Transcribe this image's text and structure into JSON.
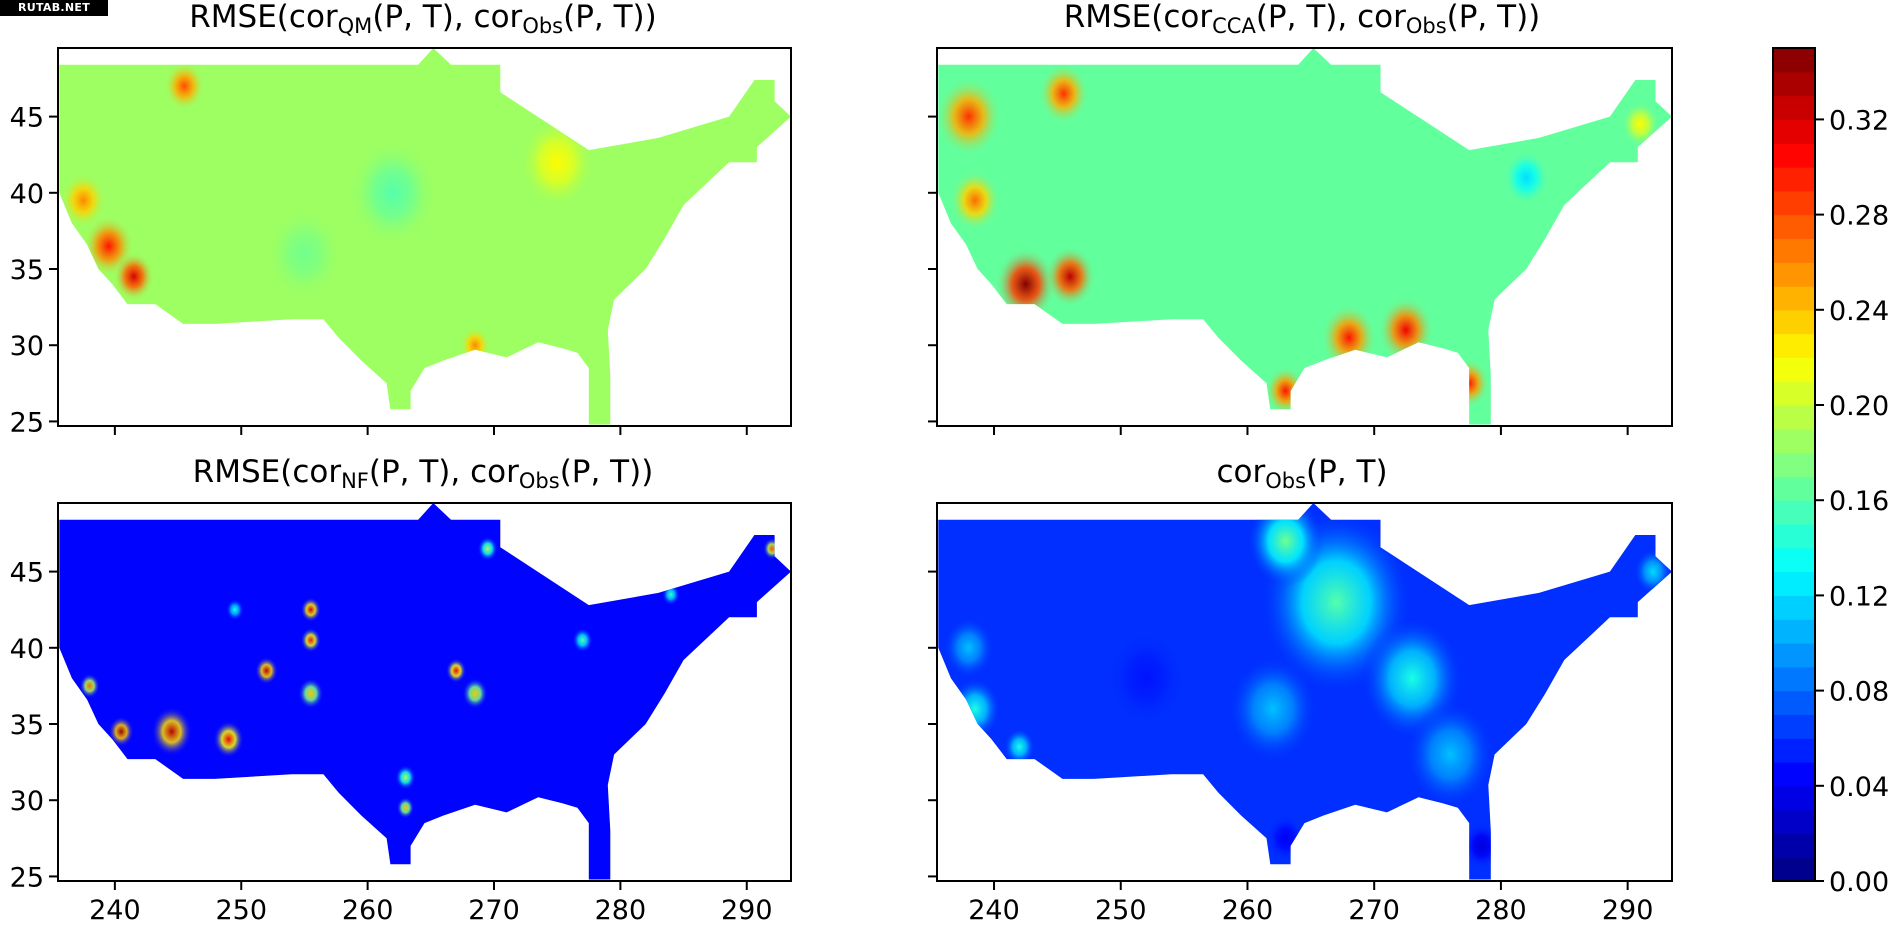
{
  "watermark": "RUTAB.NET",
  "chart_data": {
    "type": "heatmap",
    "colormap": "jet",
    "colorbar": {
      "range": [
        0.0,
        0.35
      ],
      "ticks": [
        "0.00",
        "0.04",
        "0.08",
        "0.12",
        "0.16",
        "0.20",
        "0.24",
        "0.28",
        "0.32"
      ]
    },
    "x_ticks": [
      "240",
      "250",
      "260",
      "270",
      "280",
      "290"
    ],
    "y_ticks": [
      "25",
      "30",
      "35",
      "40",
      "45"
    ],
    "xlim": [
      235.5,
      293.5
    ],
    "ylim": [
      24.7,
      49.5
    ],
    "panels": [
      {
        "title": {
          "pre": "RMSE(cor",
          "sub1": "QM",
          "mid": "(P, T), cor",
          "sub2": "Obs",
          "post": "(P, T))"
        },
        "base_value": 0.185,
        "hotspots": [
          {
            "x": 245.5,
            "y": 47.0,
            "v": 0.28,
            "r": 1.6
          },
          {
            "x": 239.5,
            "y": 36.5,
            "v": 0.3,
            "r": 2.0
          },
          {
            "x": 241.5,
            "y": 34.5,
            "v": 0.32,
            "r": 1.6
          },
          {
            "x": 237.5,
            "y": 39.5,
            "v": 0.26,
            "r": 1.8
          },
          {
            "x": 255.0,
            "y": 36.0,
            "v": 0.17,
            "r": 3.0
          },
          {
            "x": 262.0,
            "y": 40.0,
            "v": 0.16,
            "r": 3.5
          },
          {
            "x": 275.0,
            "y": 42.0,
            "v": 0.22,
            "r": 3.0
          },
          {
            "x": 268.5,
            "y": 30.0,
            "v": 0.26,
            "r": 1.2
          }
        ]
      },
      {
        "title": {
          "pre": "RMSE(cor",
          "sub1": "CCA",
          "mid": "(P, T), cor",
          "sub2": "Obs",
          "post": "(P, T))"
        },
        "base_value": 0.165,
        "hotspots": [
          {
            "x": 238.0,
            "y": 45.0,
            "v": 0.29,
            "r": 2.6
          },
          {
            "x": 242.5,
            "y": 34.0,
            "v": 0.35,
            "r": 2.4
          },
          {
            "x": 246.0,
            "y": 34.5,
            "v": 0.33,
            "r": 2.0
          },
          {
            "x": 245.5,
            "y": 46.5,
            "v": 0.29,
            "r": 2.0
          },
          {
            "x": 238.5,
            "y": 39.5,
            "v": 0.27,
            "r": 2.0
          },
          {
            "x": 268.0,
            "y": 30.5,
            "v": 0.3,
            "r": 2.2
          },
          {
            "x": 272.5,
            "y": 31.0,
            "v": 0.31,
            "r": 2.2
          },
          {
            "x": 263.0,
            "y": 27.0,
            "v": 0.3,
            "r": 1.6
          },
          {
            "x": 277.5,
            "y": 27.5,
            "v": 0.3,
            "r": 1.6
          },
          {
            "x": 291.0,
            "y": 44.5,
            "v": 0.22,
            "r": 1.5
          },
          {
            "x": 282.0,
            "y": 41.0,
            "v": 0.12,
            "r": 1.8
          }
        ]
      },
      {
        "title": {
          "pre": "RMSE(cor",
          "sub1": "NF",
          "mid": "(P, T), cor",
          "sub2": "Obs",
          "post": "(P, T))"
        },
        "base_value": 0.045,
        "hotspots": [
          {
            "x": 252.0,
            "y": 38.5,
            "v": 0.33,
            "r": 0.9
          },
          {
            "x": 255.5,
            "y": 42.5,
            "v": 0.32,
            "r": 0.8
          },
          {
            "x": 255.5,
            "y": 40.5,
            "v": 0.3,
            "r": 0.8
          },
          {
            "x": 255.5,
            "y": 37.0,
            "v": 0.24,
            "r": 1.0
          },
          {
            "x": 240.5,
            "y": 34.5,
            "v": 0.34,
            "r": 1.0
          },
          {
            "x": 244.5,
            "y": 34.5,
            "v": 0.33,
            "r": 1.6
          },
          {
            "x": 249.0,
            "y": 34.0,
            "v": 0.31,
            "r": 1.2
          },
          {
            "x": 238.0,
            "y": 37.5,
            "v": 0.27,
            "r": 0.8
          },
          {
            "x": 267.0,
            "y": 38.5,
            "v": 0.31,
            "r": 0.8
          },
          {
            "x": 268.5,
            "y": 37.0,
            "v": 0.24,
            "r": 1.0
          },
          {
            "x": 263.0,
            "y": 31.5,
            "v": 0.19,
            "r": 0.8
          },
          {
            "x": 263.0,
            "y": 29.5,
            "v": 0.24,
            "r": 0.7
          },
          {
            "x": 269.5,
            "y": 46.5,
            "v": 0.19,
            "r": 0.8
          },
          {
            "x": 277.0,
            "y": 40.5,
            "v": 0.16,
            "r": 0.8
          },
          {
            "x": 284.0,
            "y": 43.5,
            "v": 0.15,
            "r": 0.7
          },
          {
            "x": 249.5,
            "y": 42.5,
            "v": 0.14,
            "r": 0.7
          },
          {
            "x": 292.0,
            "y": 46.5,
            "v": 0.28,
            "r": 0.7
          }
        ]
      },
      {
        "title": {
          "pre": "cor",
          "sub1": "Obs",
          "mid": "(P, T)",
          "sub2": "",
          "post": ""
        },
        "base_value": 0.06,
        "hotspots": [
          {
            "x": 267.0,
            "y": 43.0,
            "v": 0.16,
            "r": 6.0
          },
          {
            "x": 263.0,
            "y": 47.0,
            "v": 0.17,
            "r": 3.0
          },
          {
            "x": 273.0,
            "y": 38.0,
            "v": 0.14,
            "r": 4.0
          },
          {
            "x": 262.0,
            "y": 36.0,
            "v": 0.11,
            "r": 3.5
          },
          {
            "x": 276.0,
            "y": 33.0,
            "v": 0.11,
            "r": 3.5
          },
          {
            "x": 238.5,
            "y": 36.0,
            "v": 0.14,
            "r": 2.0
          },
          {
            "x": 238.0,
            "y": 40.0,
            "v": 0.11,
            "r": 2.0
          },
          {
            "x": 292.0,
            "y": 45.0,
            "v": 0.12,
            "r": 1.5
          },
          {
            "x": 252.0,
            "y": 38.0,
            "v": 0.05,
            "r": 3.0
          },
          {
            "x": 246.0,
            "y": 36.0,
            "v": 0.06,
            "r": 3.0
          },
          {
            "x": 242.0,
            "y": 33.5,
            "v": 0.14,
            "r": 1.2
          },
          {
            "x": 278.5,
            "y": 27.0,
            "v": 0.03,
            "r": 1.5
          },
          {
            "x": 263.0,
            "y": 27.5,
            "v": 0.04,
            "r": 1.5
          }
        ]
      }
    ]
  }
}
